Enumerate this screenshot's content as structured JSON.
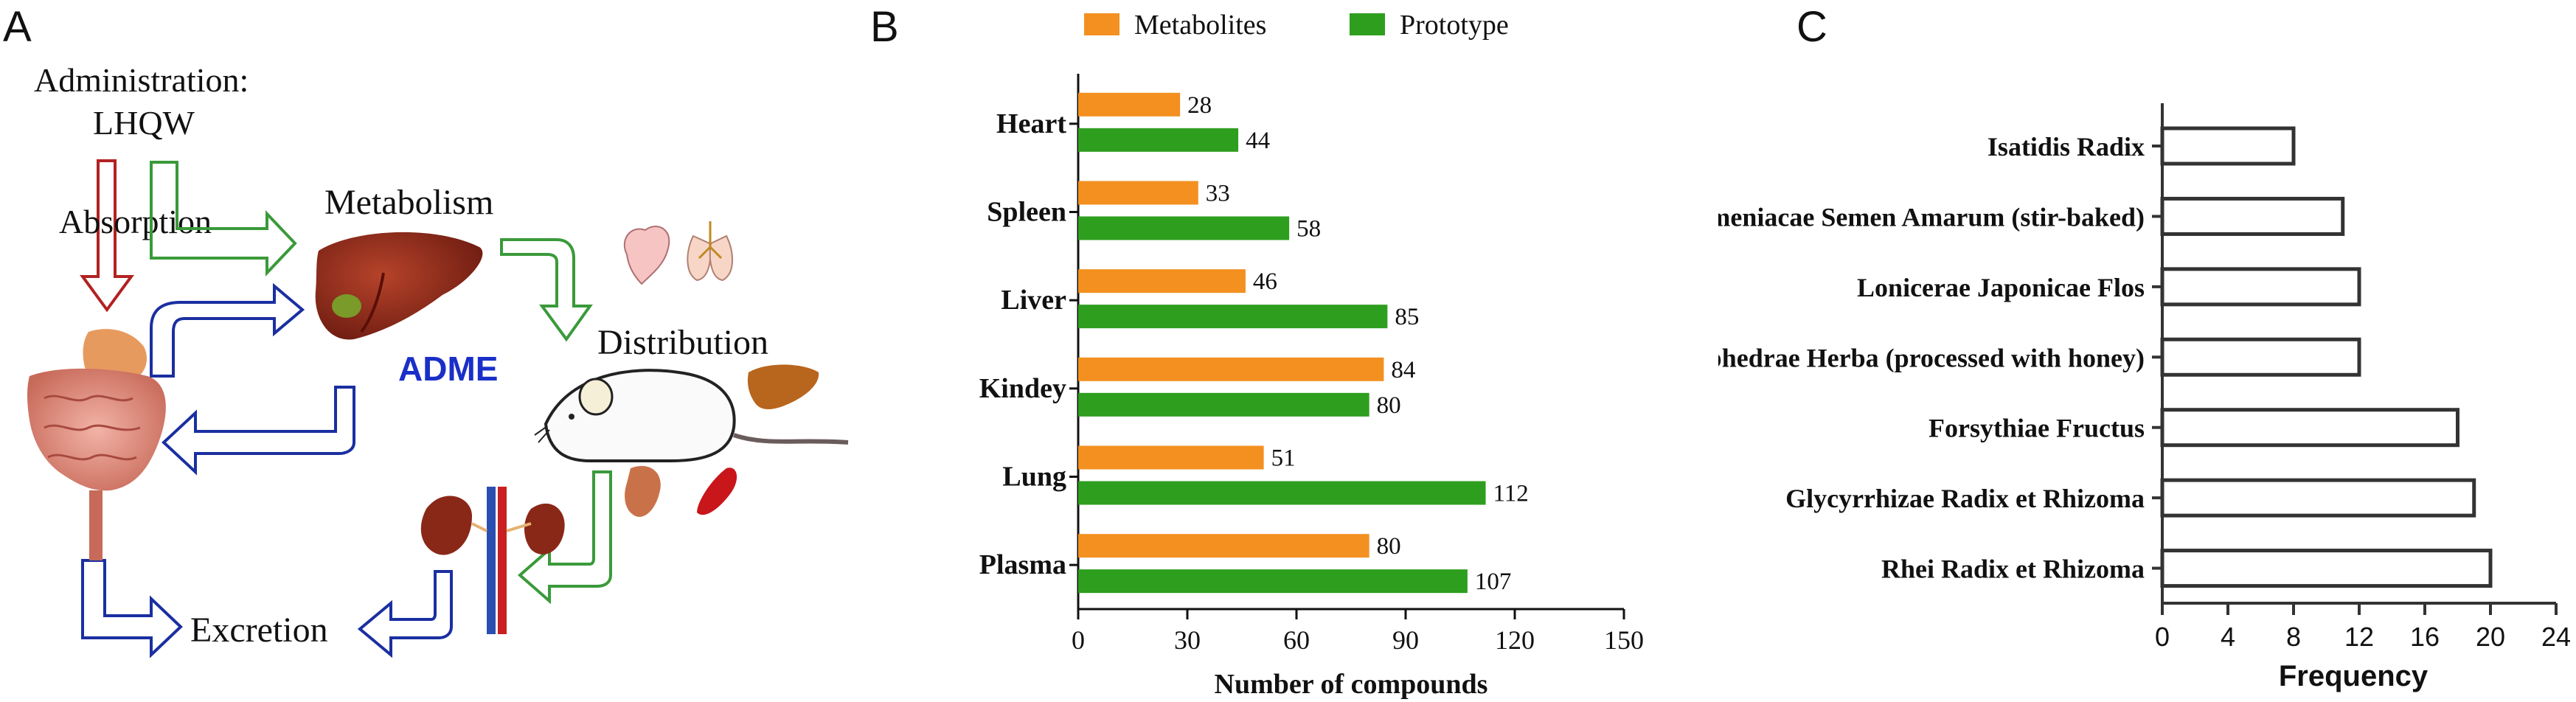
{
  "panel_labels": [
    "A",
    "B",
    "C"
  ],
  "panel_a": {
    "administration_line1": "Administration:",
    "administration_line2": "LHQW",
    "absorption": "Absorption",
    "metabolism": "Metabolism",
    "distribution": "Distribution",
    "adme": "ADME",
    "excretion": "Excretion",
    "colors": {
      "absorption_arrow": "#b22222",
      "metabolism_arrow": "#3a9a3a",
      "blue_arrow": "#1a2fa0",
      "adme_text": "#1a2fc8"
    }
  },
  "chart_data": [
    {
      "panel": "B",
      "type": "bar",
      "orientation": "horizontal",
      "categories": [
        "Heart",
        "Spleen",
        "Liver",
        "Kindey",
        "Lung",
        "Plasma"
      ],
      "series": [
        {
          "name": "Metabolites",
          "color": "#f39020",
          "values": [
            28,
            33,
            46,
            84,
            51,
            80
          ]
        },
        {
          "name": "Prototype",
          "color": "#2e9e1e",
          "values": [
            44,
            58,
            85,
            80,
            112,
            107
          ]
        }
      ],
      "xlabel": "Number of compounds",
      "ylabel": "",
      "xlim": [
        0,
        150
      ],
      "xticks": [
        0,
        30,
        60,
        90,
        120,
        150
      ],
      "legend": "top",
      "grid": false
    },
    {
      "panel": "C",
      "type": "bar",
      "orientation": "horizontal",
      "categories": [
        "Isatidis Radix",
        "Armeniacae Semen Amarum (stir-baked)",
        "Lonicerae Japonicae Flos",
        "Ephedrae Herba (processed with honey)",
        "Forsythiae Fructus",
        "Glycyrrhizae Radix et Rhizoma",
        "Rhei Radix et Rhizoma"
      ],
      "values": [
        8,
        11,
        12,
        12,
        18,
        19,
        20
      ],
      "xlabel": "Frequency",
      "ylabel": "",
      "xlim": [
        0,
        24
      ],
      "xticks": [
        0,
        4,
        8,
        12,
        16,
        20,
        24
      ],
      "bar_style": "outline",
      "grid": false
    }
  ]
}
